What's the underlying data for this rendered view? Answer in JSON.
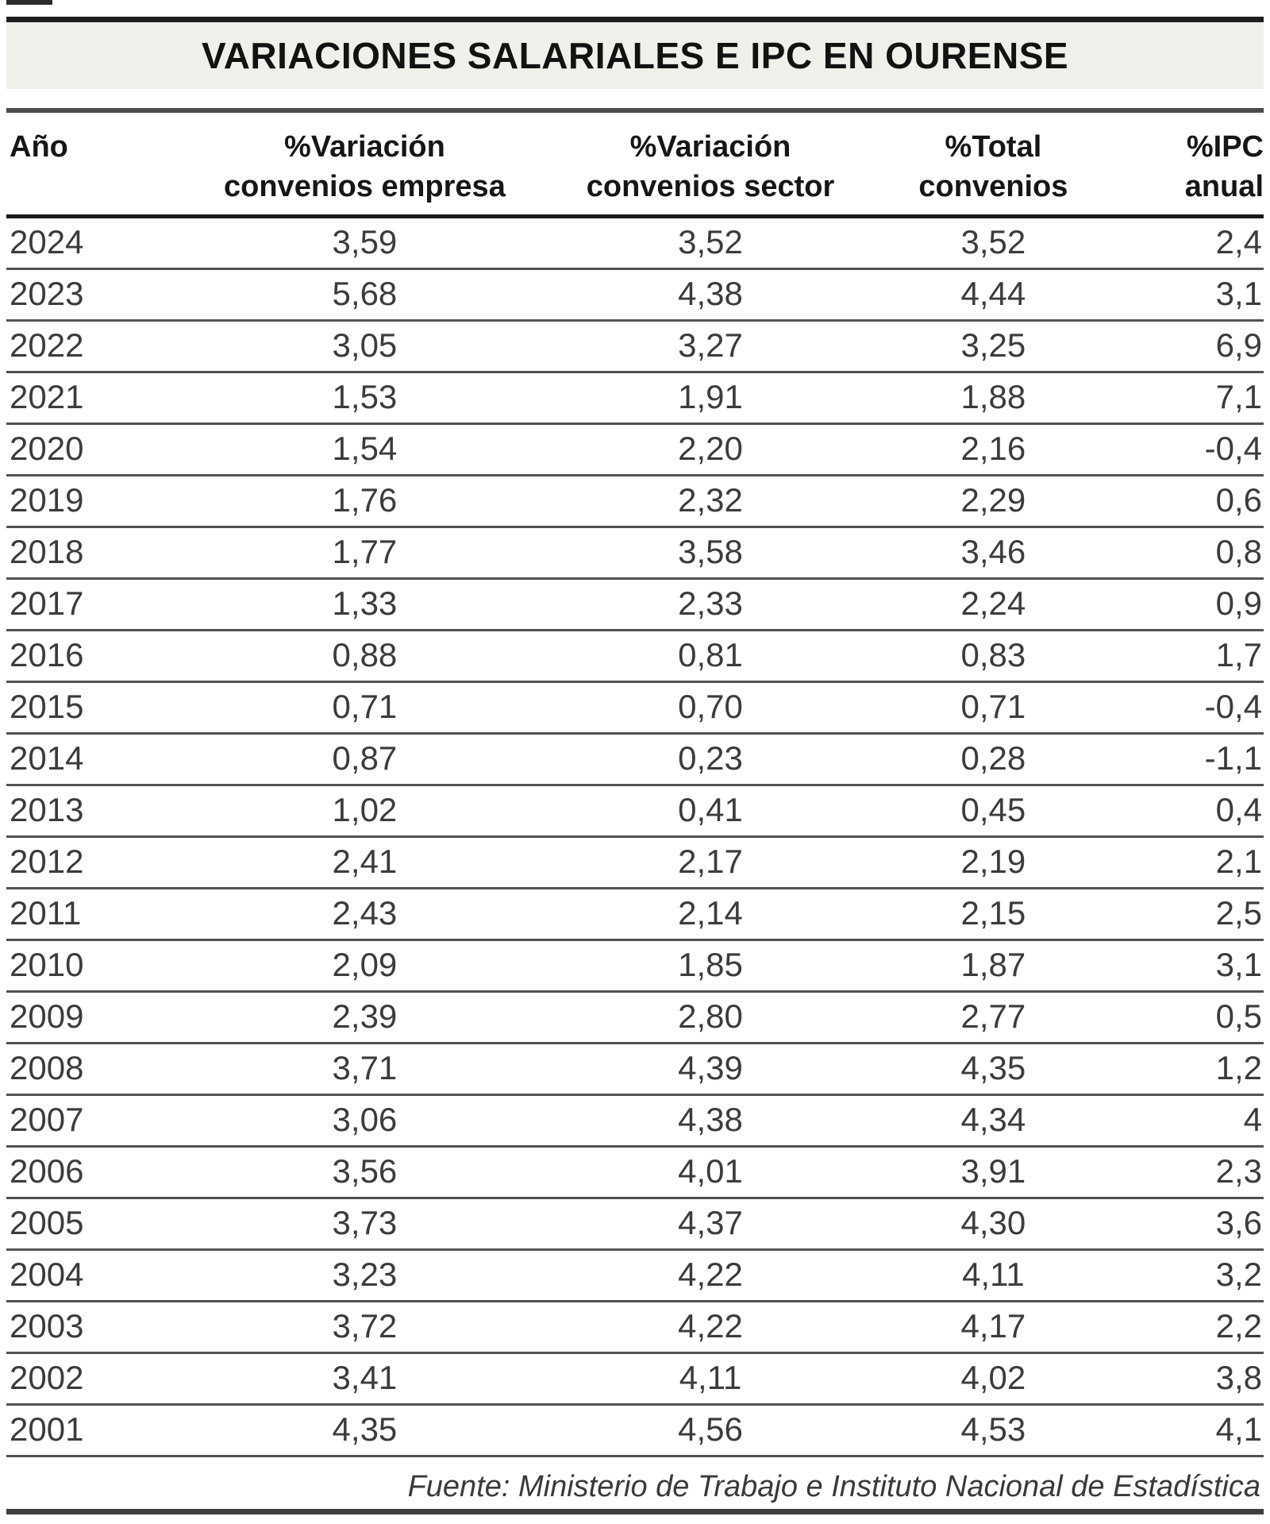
{
  "title": "VARIACIONES SALARIALES E IPC EN OURENSE",
  "source": "Fuente: Ministerio de Trabajo e Instituto Nacional de Estadística",
  "colors": {
    "title_band_bg": "#f0efe9",
    "rule_dark": "#1f1f1f",
    "rule_gray": "#4d4d4d",
    "text": "#3c3c3c"
  },
  "chart_data": {
    "type": "table",
    "title": "VARIACIONES SALARIALES E IPC EN OURENSE",
    "columns": [
      {
        "line1": "Año",
        "line2": ""
      },
      {
        "line1": "%Variación",
        "line2": "convenios empresa"
      },
      {
        "line1": "%Variación",
        "line2": "convenios sector"
      },
      {
        "line1": "%Total",
        "line2": "convenios"
      },
      {
        "line1": "%IPC",
        "line2": "anual"
      }
    ],
    "rows": [
      [
        "2024",
        "3,59",
        "3,52",
        "3,52",
        "2,4"
      ],
      [
        "2023",
        "5,68",
        "4,38",
        "4,44",
        "3,1"
      ],
      [
        "2022",
        "3,05",
        "3,27",
        "3,25",
        "6,9"
      ],
      [
        "2021",
        "1,53",
        "1,91",
        "1,88",
        "7,1"
      ],
      [
        "2020",
        "1,54",
        "2,20",
        "2,16",
        "-0,4"
      ],
      [
        "2019",
        "1,76",
        "2,32",
        "2,29",
        "0,6"
      ],
      [
        "2018",
        "1,77",
        "3,58",
        "3,46",
        "0,8"
      ],
      [
        "2017",
        "1,33",
        "2,33",
        "2,24",
        "0,9"
      ],
      [
        "2016",
        "0,88",
        "0,81",
        "0,83",
        "1,7"
      ],
      [
        "2015",
        "0,71",
        "0,70",
        "0,71",
        "-0,4"
      ],
      [
        "2014",
        "0,87",
        "0,23",
        "0,28",
        "-1,1"
      ],
      [
        "2013",
        "1,02",
        "0,41",
        "0,45",
        "0,4"
      ],
      [
        "2012",
        "2,41",
        "2,17",
        "2,19",
        "2,1"
      ],
      [
        "2011",
        "2,43",
        "2,14",
        "2,15",
        "2,5"
      ],
      [
        "2010",
        "2,09",
        "1,85",
        "1,87",
        "3,1"
      ],
      [
        "2009",
        "2,39",
        "2,80",
        "2,77",
        "0,5"
      ],
      [
        "2008",
        "3,71",
        "4,39",
        "4,35",
        "1,2"
      ],
      [
        "2007",
        "3,06",
        "4,38",
        "4,34",
        "4"
      ],
      [
        "2006",
        "3,56",
        "4,01",
        "3,91",
        "2,3"
      ],
      [
        "2005",
        "3,73",
        "4,37",
        "4,30",
        "3,6"
      ],
      [
        "2004",
        "3,23",
        "4,22",
        "4,11",
        "3,2"
      ],
      [
        "2003",
        "3,72",
        "4,22",
        "4,17",
        "2,2"
      ],
      [
        "2002",
        "3,41",
        "4,11",
        "4,02",
        "3,8"
      ],
      [
        "2001",
        "4,35",
        "4,56",
        "4,53",
        "4,1"
      ]
    ],
    "source": "Fuente: Ministerio de Trabajo e Instituto Nacional de Estadística",
    "layout": {
      "column_alignments": [
        "left",
        "center",
        "center",
        "center",
        "right"
      ],
      "decimal_separator": ","
    }
  }
}
